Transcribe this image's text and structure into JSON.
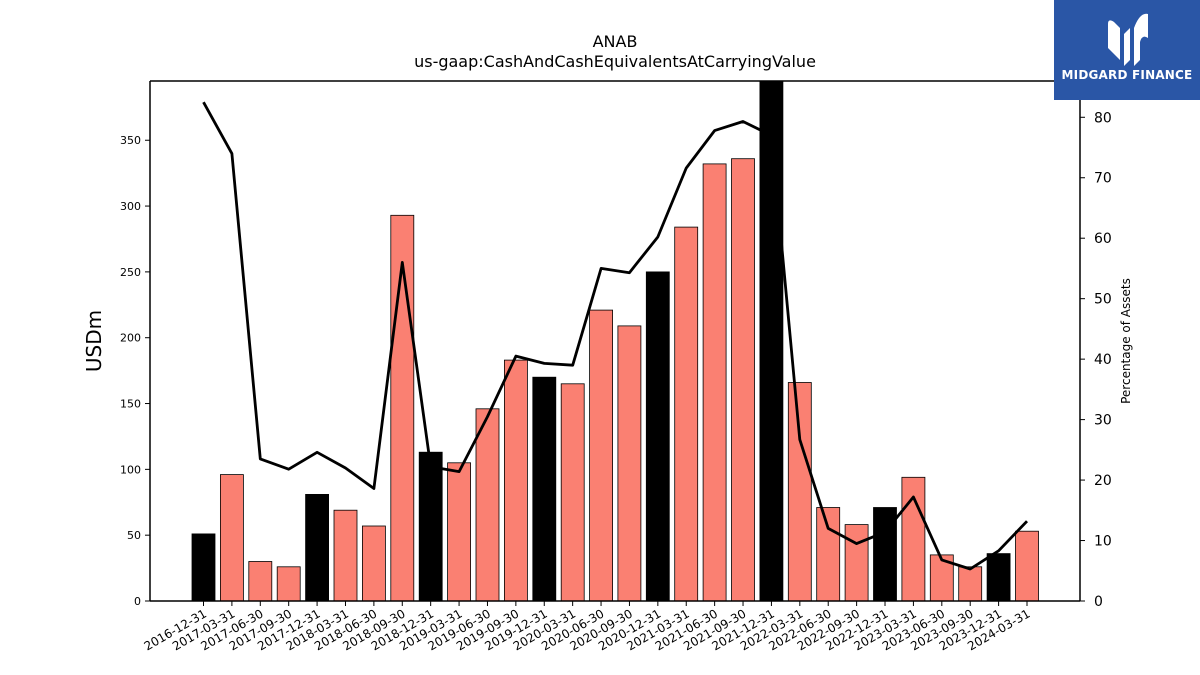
{
  "title": "ANAB",
  "subtitle": "us-gaap:CashAndCashEquivalentsAtCarryingValue",
  "logo": {
    "text": "MIDGARD FINANCE",
    "background": "#2a56a6"
  },
  "colors": {
    "bar_default": "#fa8072",
    "bar_highlight": "#000000",
    "line": "#000000"
  },
  "chart_data": {
    "type": "bar",
    "title": "ANAB",
    "subtitle": "us-gaap:CashAndCashEquivalentsAtCarryingValue",
    "ylabel": "USDm",
    "y2label": "Percentage of Assets",
    "ylim": [
      0,
      395
    ],
    "y2lim": [
      0,
      86
    ],
    "yticks": [
      0,
      50,
      100,
      150,
      200,
      250,
      300,
      350
    ],
    "y2ticks": [
      0,
      10,
      20,
      30,
      40,
      50,
      60,
      70,
      80
    ],
    "grid": false,
    "categories": [
      "2016-12-31",
      "2017-03-31",
      "2017-06-30",
      "2017-09-30",
      "2017-12-31",
      "2018-03-31",
      "2018-06-30",
      "2018-09-30",
      "2018-12-31",
      "2019-03-31",
      "2019-06-30",
      "2019-09-30",
      "2019-12-31",
      "2020-03-31",
      "2020-06-30",
      "2020-09-30",
      "2020-12-31",
      "2021-03-31",
      "2021-06-30",
      "2021-09-30",
      "2021-12-31",
      "2022-03-31",
      "2022-06-30",
      "2022-09-30",
      "2022-12-31",
      "2023-03-31",
      "2023-06-30",
      "2023-09-30",
      "2023-12-31",
      "2024-03-31"
    ],
    "series": [
      {
        "kind": "bar",
        "axis": "left",
        "values": [
          51,
          96,
          30,
          26,
          81,
          69,
          57,
          293,
          113,
          105,
          146,
          183,
          170,
          165,
          221,
          209,
          250,
          284,
          332,
          336,
          398,
          166,
          71,
          58,
          71,
          94,
          35,
          26,
          36,
          53
        ],
        "highlight_year_end": true
      },
      {
        "kind": "line",
        "axis": "right",
        "values": [
          82.5,
          74,
          23.5,
          21.8,
          24.6,
          22,
          18.6,
          56,
          22.2,
          21.4,
          30.5,
          40.5,
          39.3,
          39,
          55,
          54.3,
          60.2,
          71.6,
          77.8,
          79.3,
          77,
          26.7,
          12,
          9.5,
          11.4,
          17.2,
          6.8,
          5.3,
          8.3,
          13.2
        ]
      }
    ]
  }
}
